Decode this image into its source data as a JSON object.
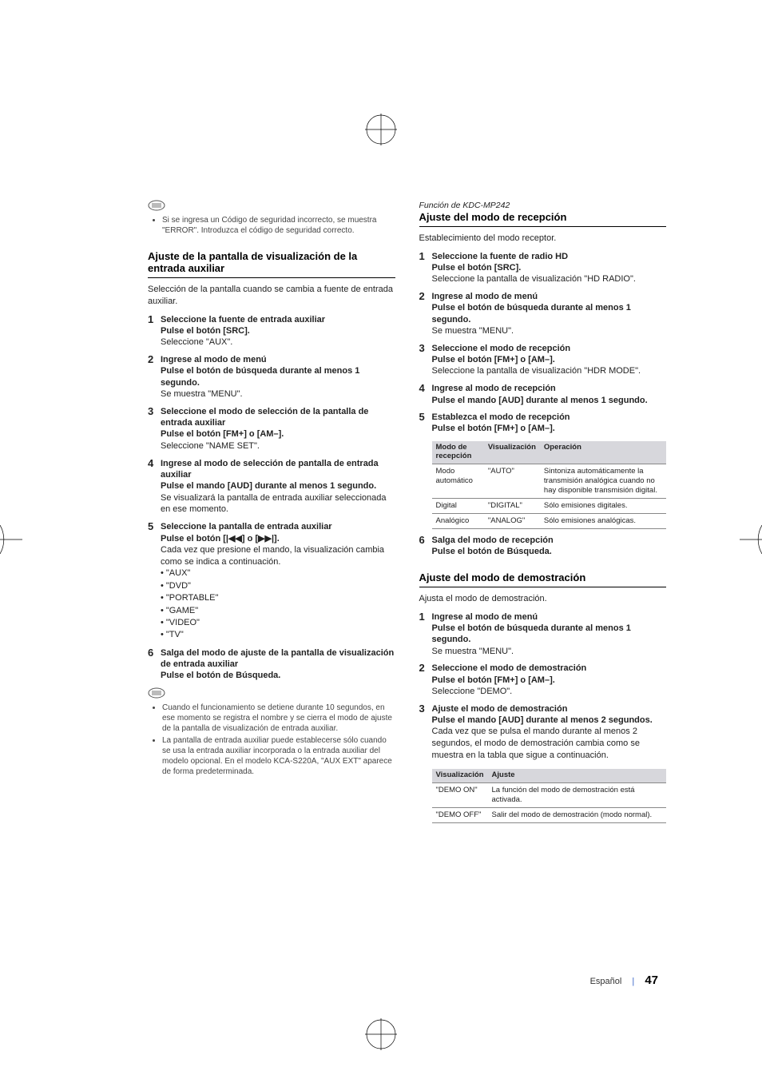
{
  "left": {
    "note1": "Si se ingresa un Código de seguridad incorrecto, se muestra \"ERROR\". Introduzca el código de seguridad correcto.",
    "section1": {
      "title": "Ajuste de la pantalla de visualización de la entrada auxiliar",
      "intro": "Selección de la pantalla cuando se cambia a fuente de entrada auxiliar.",
      "steps": [
        {
          "n": "1",
          "t": "Seleccione la fuente de entrada auxiliar",
          "a": "Pulse el botón [SRC].",
          "d": "Seleccione \"AUX\"."
        },
        {
          "n": "2",
          "t": "Ingrese al modo de menú",
          "a": "Pulse el botón de búsqueda durante al menos 1 segundo.",
          "d": "Se muestra \"MENU\"."
        },
        {
          "n": "3",
          "t": "Seleccione el modo de selección de la pantalla de entrada auxiliar",
          "a": "Pulse el botón [FM+] o [AM–].",
          "d": "Seleccione \"NAME SET\"."
        },
        {
          "n": "4",
          "t": "Ingrese al modo de selección de pantalla de entrada auxiliar",
          "a": "Pulse el mando [AUD] durante al menos 1 segundo.",
          "d": "Se visualizará la pantalla de entrada auxiliar seleccionada en ese momento."
        },
        {
          "n": "5",
          "t": "Seleccione la pantalla de entrada auxiliar",
          "a": "Pulse el botón [|◀◀] o [▶▶|].",
          "d": "Cada vez que presione el mando, la visualización cambia como se indica a continuación.",
          "list": [
            "\"AUX\"",
            "\"DVD\"",
            "\"PORTABLE\"",
            "\"GAME\"",
            "\"VIDEO\"",
            "\"TV\""
          ]
        },
        {
          "n": "6",
          "t": "Salga del modo de ajuste de la pantalla de visualización de entrada auxiliar",
          "a": "Pulse el botón de Búsqueda."
        }
      ],
      "notes": [
        "Cuando el funcionamiento se detiene durante 10 segundos, en ese momento se registra el nombre y se cierra el modo de ajuste de la pantalla de visualización de entrada auxiliar.",
        "La pantalla de entrada auxiliar puede establecerse sólo cuando se usa la entrada auxiliar incorporada o la entrada auxiliar del modelo opcional. En el modelo KCA-S220A, \"AUX EXT\" aparece de forma predeterminada."
      ]
    }
  },
  "right": {
    "func": "Función de KDC-MP242",
    "section1": {
      "title": "Ajuste del modo de recepción",
      "intro": "Establecimiento del modo receptor.",
      "steps": [
        {
          "n": "1",
          "t": "Seleccione la fuente de radio HD",
          "a": "Pulse el botón [SRC].",
          "d": "Seleccione la pantalla de visualización \"HD RADIO\"."
        },
        {
          "n": "2",
          "t": "Ingrese al modo de menú",
          "a": "Pulse el botón de búsqueda durante al menos 1 segundo.",
          "d": "Se muestra \"MENU\"."
        },
        {
          "n": "3",
          "t": "Seleccione el modo de recepción",
          "a": "Pulse el botón [FM+] o [AM–].",
          "d": "Seleccione la pantalla de visualización \"HDR MODE\"."
        },
        {
          "n": "4",
          "t": "Ingrese al modo de  recepción",
          "a": "Pulse el mando [AUD] durante al menos 1 segundo."
        },
        {
          "n": "5",
          "t": "Establezca el modo de recepción",
          "a": "Pulse el botón [FM+] o [AM–]."
        }
      ],
      "table": {
        "head": [
          "Modo de recepción",
          "Visualización",
          "Operación"
        ],
        "rows": [
          [
            "Modo automático",
            "\"AUTO\"",
            "Sintoniza automáticamente la transmisión analógica cuando no hay disponible transmisión digital."
          ],
          [
            "Digital",
            "\"DIGITAL\"",
            "Sólo emisiones digitales."
          ],
          [
            "Analógico",
            "\"ANALOG\"",
            "Sólo emisiones analógicas."
          ]
        ]
      },
      "step6": {
        "n": "6",
        "t": "Salga del modo de  recepción",
        "a": "Pulse el botón de Búsqueda."
      }
    },
    "section2": {
      "title": "Ajuste del modo de demostración",
      "intro": "Ajusta el modo de demostración.",
      "steps": [
        {
          "n": "1",
          "t": "Ingrese al modo de menú",
          "a": "Pulse el botón de búsqueda durante al menos 1 segundo.",
          "d": "Se muestra \"MENU\"."
        },
        {
          "n": "2",
          "t": "Seleccione el modo de demostración",
          "a": "Pulse el botón [FM+] o [AM–].",
          "d": "Seleccione \"DEMO\"."
        },
        {
          "n": "3",
          "t": "Ajuste el modo de demostración",
          "a": "Pulse el mando [AUD] durante al menos 2 segundos.",
          "d": "Cada vez que se pulsa el mando durante al menos 2 segundos, el modo de demostración cambia como se muestra en la tabla que sigue a continuación."
        }
      ],
      "table": {
        "head": [
          "Visualización",
          "Ajuste"
        ],
        "rows": [
          [
            "\"DEMO ON\"",
            "La función del modo de demostración está activada."
          ],
          [
            "\"DEMO OFF\"",
            "Salir del modo de demostración (modo normal)."
          ]
        ]
      }
    }
  },
  "footer": {
    "lang": "Español",
    "num": "47"
  }
}
